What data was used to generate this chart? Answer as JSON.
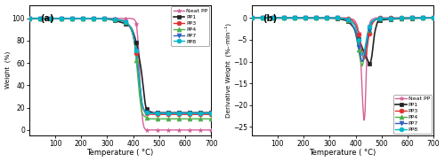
{
  "panel_a": {
    "title": "(a)",
    "xlabel": "Temperature ( °C)",
    "ylabel": "Weight  (%)",
    "xlim": [
      0,
      700
    ],
    "ylim": [
      -5,
      112
    ],
    "yticks": [
      0,
      20,
      40,
      60,
      80,
      100
    ],
    "xticks": [
      100,
      200,
      300,
      400,
      500,
      600,
      700
    ],
    "series": {
      "Neat PP": {
        "color": "#d4619a",
        "marker": "*",
        "markersize": 3.5,
        "linewidth": 1.0,
        "x": [
          0,
          50,
          100,
          200,
          300,
          350,
          380,
          400,
          410,
          420,
          430,
          440,
          445,
          450,
          460,
          700
        ],
        "y": [
          100,
          100,
          100,
          100,
          100,
          100,
          100,
          99.5,
          97,
          75,
          25,
          4,
          1,
          0.2,
          0,
          0
        ]
      },
      "PP1": {
        "color": "#222222",
        "marker": "s",
        "markersize": 3.5,
        "linewidth": 1.2,
        "x": [
          0,
          50,
          200,
          300,
          330,
          360,
          390,
          410,
          430,
          450,
          460,
          470,
          480,
          700
        ],
        "y": [
          100,
          100,
          100,
          99.5,
          98,
          96,
          92,
          80,
          55,
          20,
          17,
          16,
          15.5,
          15.5
        ]
      },
      "PP3": {
        "color": "#e03030",
        "marker": "o",
        "markersize": 3.5,
        "linewidth": 1.0,
        "x": [
          0,
          50,
          200,
          300,
          360,
          390,
          410,
          425,
          435,
          445,
          455,
          480,
          700
        ],
        "y": [
          100,
          100,
          100,
          99.5,
          98,
          91,
          72,
          40,
          22,
          16,
          14.5,
          14,
          14
        ]
      },
      "PP4": {
        "color": "#4daf4a",
        "marker": "^",
        "markersize": 3.5,
        "linewidth": 1.0,
        "x": [
          0,
          50,
          200,
          300,
          350,
          380,
          400,
          415,
          425,
          435,
          445,
          470,
          700
        ],
        "y": [
          100,
          100,
          100,
          99.5,
          98,
          95,
          85,
          55,
          30,
          15,
          12,
          10,
          10
        ]
      },
      "PP7": {
        "color": "#3060c0",
        "marker": "v",
        "markersize": 3.5,
        "linewidth": 1.0,
        "x": [
          0,
          50,
          200,
          300,
          360,
          390,
          410,
          425,
          435,
          445,
          455,
          480,
          700
        ],
        "y": [
          100,
          100,
          100,
          99.5,
          98,
          92,
          74,
          42,
          23,
          17,
          15.5,
          15,
          15
        ]
      },
      "PP8": {
        "color": "#00b8c8",
        "marker": "o",
        "markersize": 3.5,
        "linewidth": 1.0,
        "x": [
          0,
          50,
          200,
          300,
          360,
          390,
          410,
          425,
          435,
          445,
          455,
          480,
          700
        ],
        "y": [
          100,
          100,
          100,
          99.5,
          98,
          92,
          74,
          42,
          23,
          17,
          15.5,
          15,
          15
        ]
      }
    }
  },
  "panel_b": {
    "title": "(b)",
    "xlabel": "Temperature ( °C)",
    "ylabel": "Derivative Weight  (%-·min⁻¹)",
    "xlim": [
      0,
      700
    ],
    "ylim": [
      -27,
      3
    ],
    "yticks": [
      0,
      -5,
      -10,
      -15,
      -20,
      -25
    ],
    "xticks": [
      100,
      200,
      300,
      400,
      500,
      600,
      700
    ],
    "series": {
      "Neat PP": {
        "color": "#d4619a",
        "marker": "*",
        "markersize": 3.5,
        "linewidth": 1.0,
        "x": [
          0,
          350,
          390,
          405,
          415,
          422,
          428,
          433,
          436,
          440,
          445,
          452,
          460,
          480,
          700
        ],
        "y": [
          0,
          0,
          -0.3,
          -1.5,
          -5,
          -12,
          -20,
          -23.5,
          -22,
          -15,
          -6,
          -2,
          -0.5,
          0,
          0
        ]
      },
      "PP1": {
        "color": "#222222",
        "marker": "s",
        "markersize": 3.5,
        "linewidth": 1.2,
        "x": [
          0,
          300,
          360,
          390,
          410,
          430,
          445,
          455,
          462,
          468,
          475,
          490,
          700
        ],
        "y": [
          0,
          0,
          -0.5,
          -2,
          -4.5,
          -7.5,
          -9.5,
          -10.5,
          -9,
          -6,
          -3,
          -0.5,
          0
        ]
      },
      "PP3": {
        "color": "#e03030",
        "marker": "o",
        "markersize": 3.5,
        "linewidth": 1.0,
        "x": [
          0,
          350,
          380,
          400,
          415,
          425,
          432,
          438,
          445,
          455,
          470,
          490,
          700
        ],
        "y": [
          0,
          0,
          -0.3,
          -1.5,
          -4.5,
          -7.5,
          -9.5,
          -9,
          -6.5,
          -3,
          -0.8,
          0,
          0
        ]
      },
      "PP4": {
        "color": "#4daf4a",
        "marker": "^",
        "markersize": 3.5,
        "linewidth": 1.0,
        "x": [
          0,
          330,
          370,
          395,
          408,
          418,
          425,
          432,
          440,
          450,
          462,
          490,
          700
        ],
        "y": [
          0,
          0,
          -0.5,
          -2.5,
          -6,
          -9.5,
          -11,
          -9.5,
          -6.5,
          -3.5,
          -1,
          -0.2,
          0
        ]
      },
      "PP7": {
        "color": "#3060c0",
        "marker": "v",
        "markersize": 3.5,
        "linewidth": 1.0,
        "x": [
          0,
          330,
          370,
          395,
          408,
          418,
          425,
          432,
          440,
          450,
          462,
          490,
          700
        ],
        "y": [
          0,
          0,
          -0.5,
          -2.5,
          -5.5,
          -8.5,
          -10,
          -9,
          -6.5,
          -3.5,
          -1,
          -0.2,
          0
        ]
      },
      "PP8": {
        "color": "#00b8c8",
        "marker": "o",
        "markersize": 3.5,
        "linewidth": 1.0,
        "x": [
          0,
          330,
          370,
          395,
          408,
          418,
          425,
          432,
          440,
          450,
          462,
          490,
          700
        ],
        "y": [
          0,
          0,
          -0.3,
          -1.5,
          -4,
          -7,
          -8.5,
          -8,
          -5.5,
          -2.5,
          -0.8,
          -0.1,
          0
        ]
      }
    }
  },
  "legend_order": [
    "Neat PP",
    "PP1",
    "PP3",
    "PP4",
    "PP7",
    "PP8"
  ],
  "n_markers": 18,
  "background_color": "#ffffff"
}
